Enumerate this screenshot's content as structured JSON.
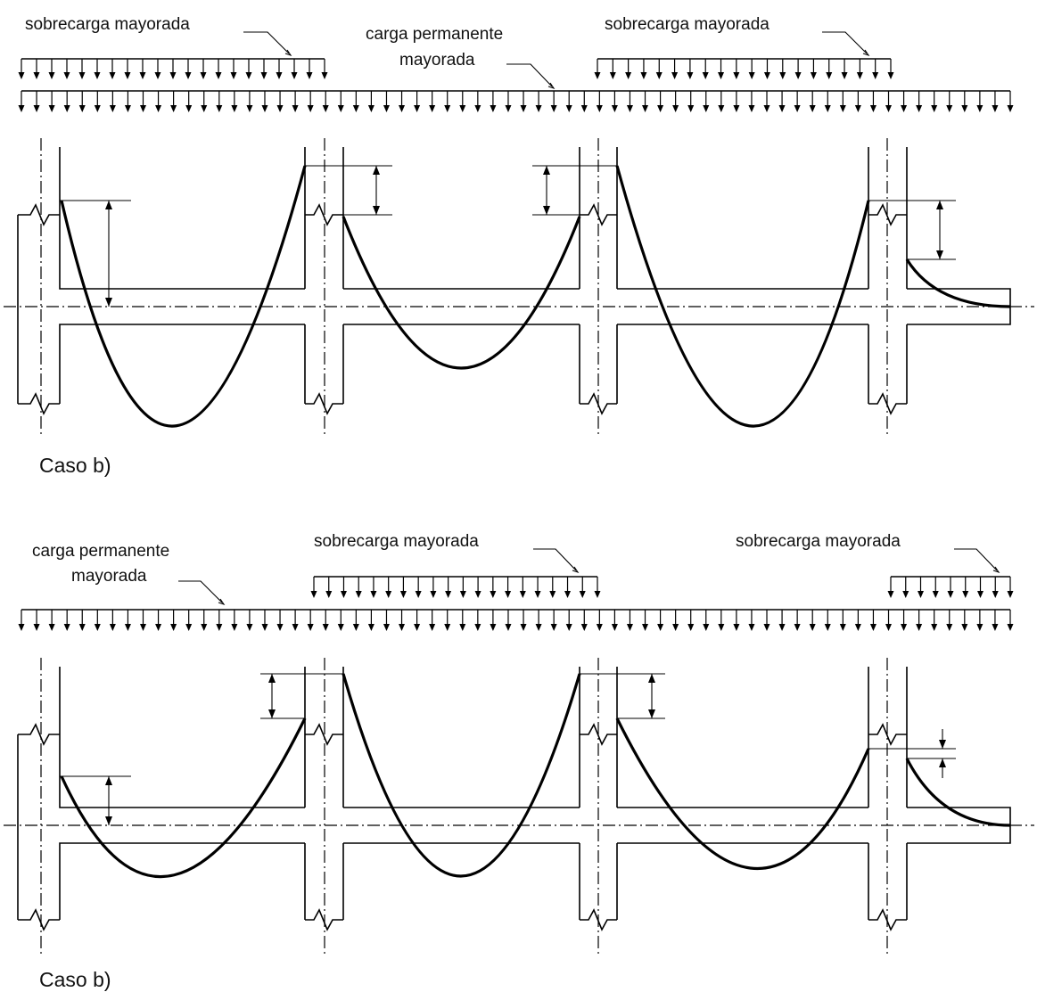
{
  "case_top": {
    "caption": "Caso b)",
    "loads": {
      "live_left_label": "sobrecarga mayorada",
      "permanent_label_line1": "carga permanente",
      "permanent_label_line2": "mayorada",
      "live_right_label": "sobrecarga mayorada"
    }
  },
  "case_bottom": {
    "caption": "Caso b)",
    "loads": {
      "permanent_label_line1": "carga permanente",
      "permanent_label_line2": "mayorada",
      "live_mid_label": "sobrecarga mayorada",
      "live_right_label": "sobrecarga mayorada"
    }
  },
  "colors": {
    "ink": "#000000",
    "background": "#ffffff"
  }
}
